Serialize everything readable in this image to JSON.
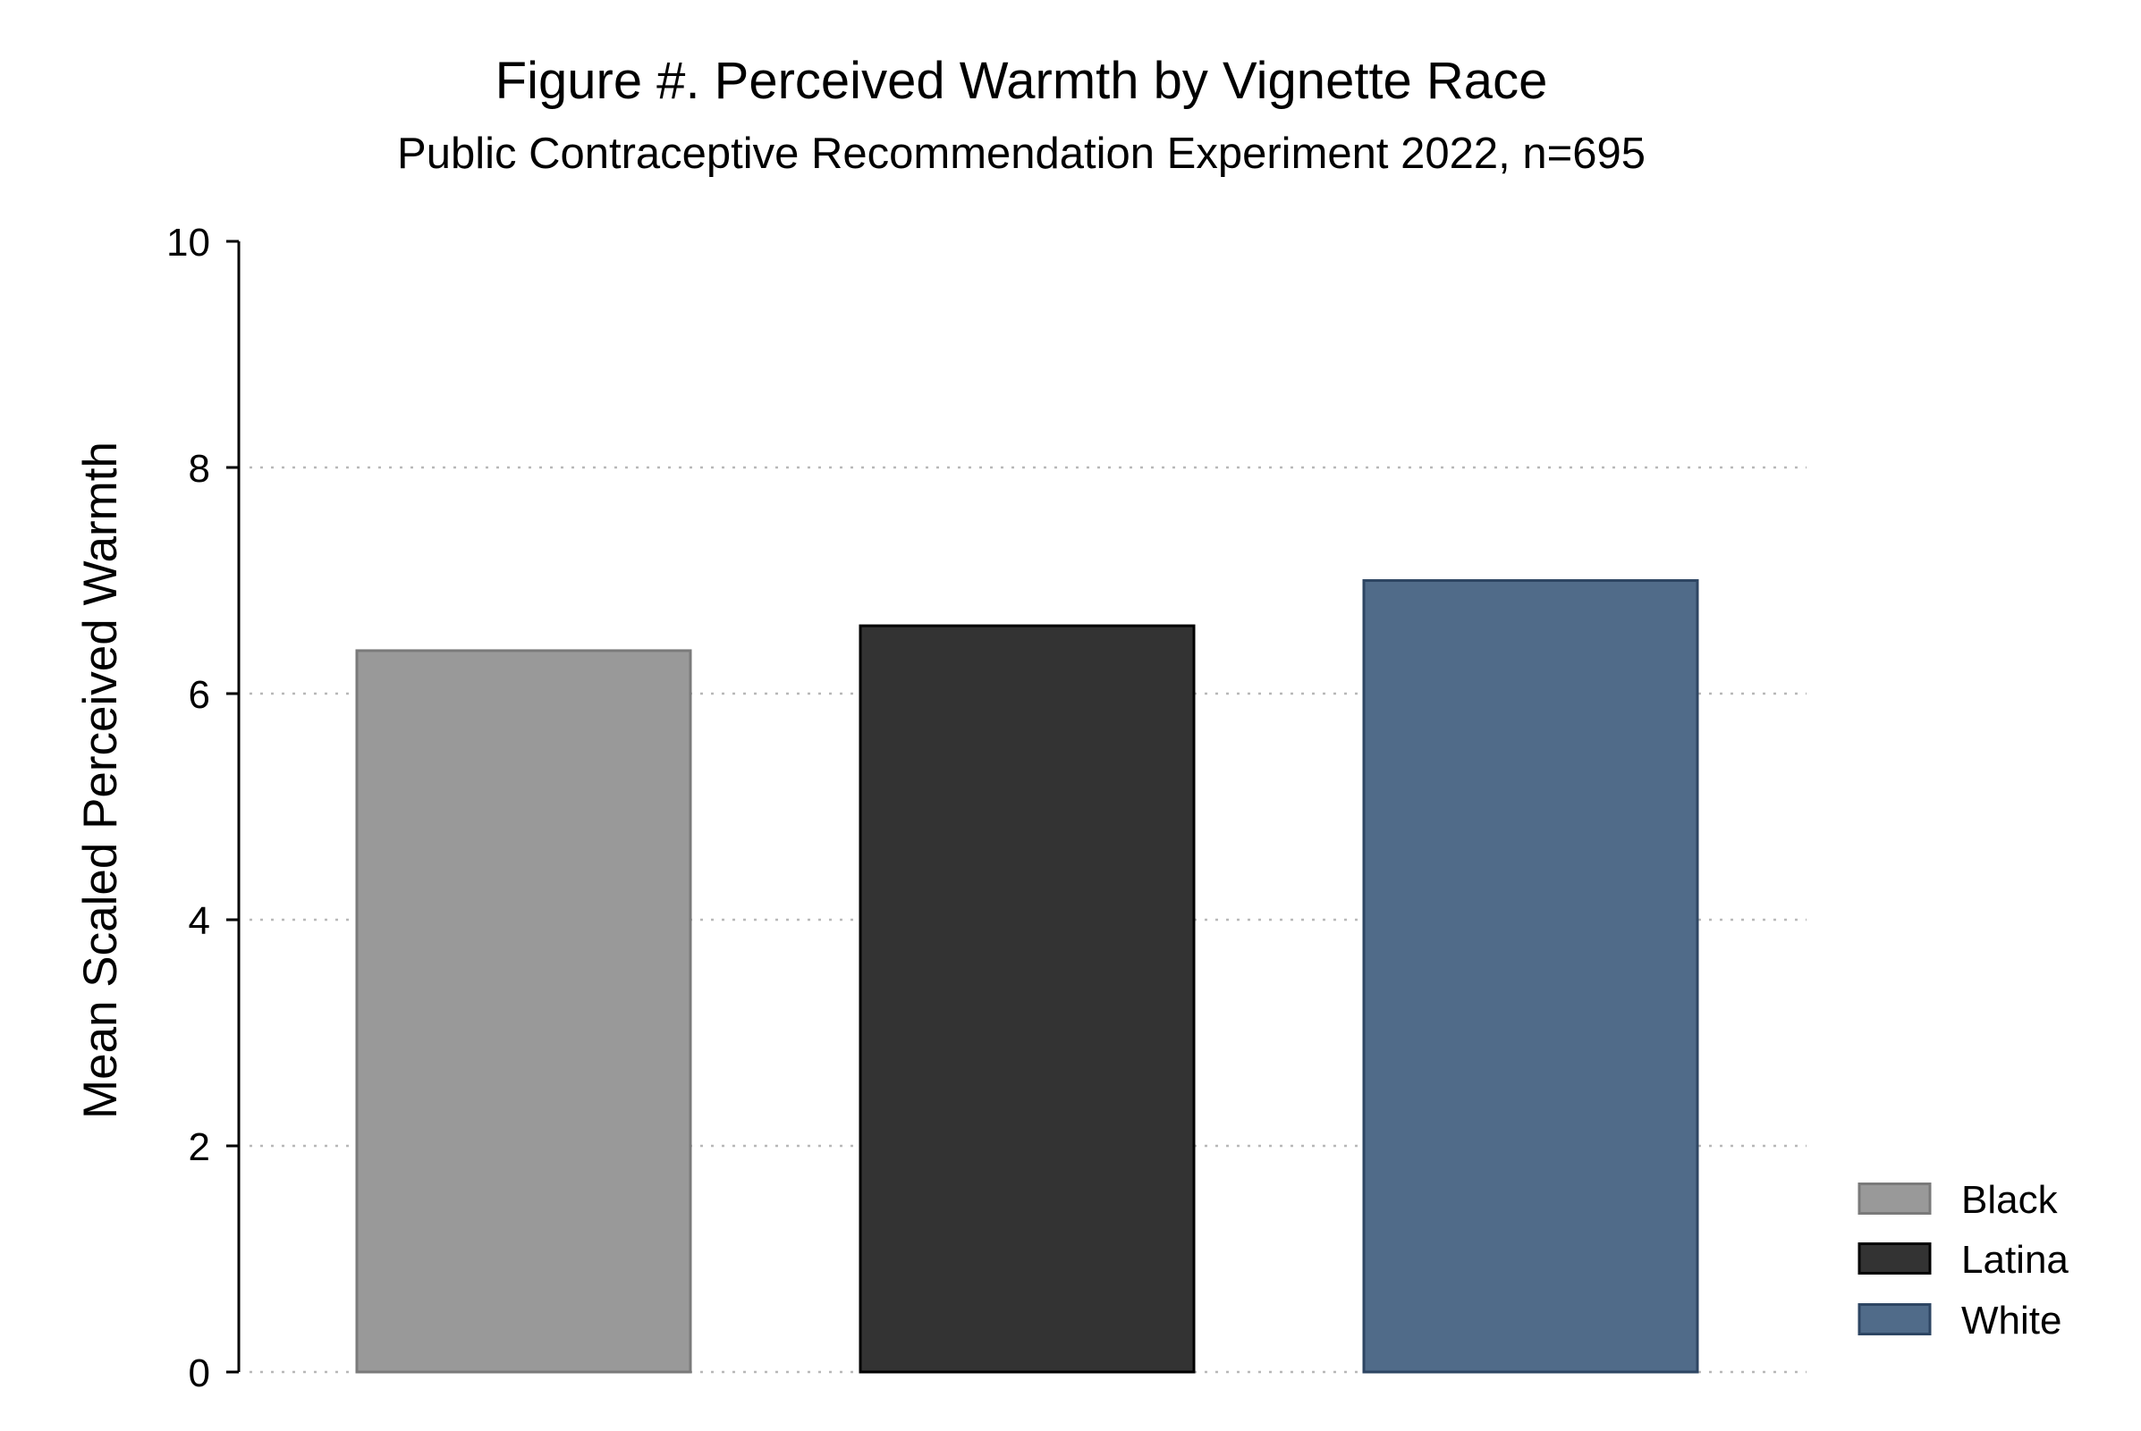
{
  "chart_data": {
    "type": "bar",
    "title": "Figure #. Perceived Warmth by Vignette Race",
    "subtitle": "Public Contraceptive Recommendation Experiment 2022, n=695",
    "xlabel": "",
    "ylabel": "Mean Scaled Perceived Warmth",
    "ylim": [
      0,
      10
    ],
    "yticks": [
      0,
      2,
      4,
      6,
      8,
      10
    ],
    "grid": "horizontal dotted",
    "legend_position": "right",
    "series": [
      {
        "name": "Black",
        "value": 6.38,
        "color": "#999999",
        "stroke": "#7a7a7a"
      },
      {
        "name": "Latina",
        "value": 6.6,
        "color": "#333333",
        "stroke": "#000000"
      },
      {
        "name": "White",
        "value": 7.0,
        "color": "#506b89",
        "stroke": "#2e4663"
      }
    ]
  }
}
